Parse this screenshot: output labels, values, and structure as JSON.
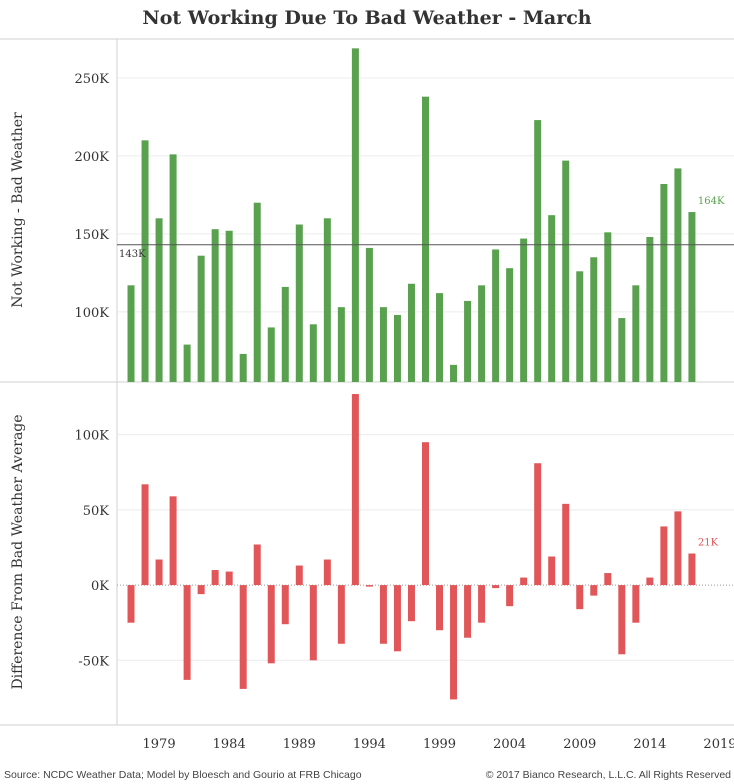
{
  "title": "Not Working Due To Bad Weather - March",
  "footer": {
    "source": "Source: NCDC Weather Data; Model by Bloesch and Gourio at FRB Chicago",
    "copyright": "© 2017 Bianco Research, L.L.C. All Rights Reserved"
  },
  "colors": {
    "top_bars": "#59a14f",
    "bottom_bars": "#e15759",
    "reference_line": "#555555"
  },
  "chart_data": [
    {
      "type": "bar",
      "ylabel": "Not Working - Bad Weather",
      "xlim": [
        1976,
        2020
      ],
      "ylim": [
        55000,
        275000
      ],
      "yticks": [
        100000,
        150000,
        200000,
        250000
      ],
      "ytick_labels": [
        "100K",
        "150K",
        "200K",
        "250K"
      ],
      "reference_line": {
        "value": 143000,
        "label": "143K"
      },
      "last_value_label": "164K",
      "x": [
        1977,
        1978,
        1979,
        1980,
        1981,
        1982,
        1983,
        1984,
        1985,
        1986,
        1987,
        1988,
        1989,
        1990,
        1991,
        1992,
        1993,
        1994,
        1995,
        1996,
        1997,
        1998,
        1999,
        2000,
        2001,
        2002,
        2003,
        2004,
        2005,
        2006,
        2007,
        2008,
        2009,
        2010,
        2011,
        2012,
        2013,
        2014,
        2015,
        2016,
        2017
      ],
      "values": [
        117000,
        210000,
        160000,
        201000,
        79000,
        136000,
        153000,
        152000,
        73000,
        170000,
        90000,
        116000,
        156000,
        92000,
        160000,
        103000,
        269000,
        141000,
        103000,
        98000,
        118000,
        238000,
        112000,
        66000,
        107000,
        117000,
        140000,
        128000,
        147000,
        223000,
        162000,
        197000,
        126000,
        135000,
        151000,
        96000,
        117000,
        148000,
        182000,
        192000,
        164000
      ]
    },
    {
      "type": "bar",
      "ylabel": "Difference From Bad Weather Average",
      "xlim": [
        1976,
        2020
      ],
      "ylim": [
        -93000,
        135000
      ],
      "yticks": [
        -50000,
        0,
        50000,
        100000
      ],
      "ytick_labels": [
        "-50K",
        "0K",
        "50K",
        "100K"
      ],
      "last_value_label": "21K",
      "x": [
        1977,
        1978,
        1979,
        1980,
        1981,
        1982,
        1983,
        1984,
        1985,
        1986,
        1987,
        1988,
        1989,
        1990,
        1991,
        1992,
        1993,
        1994,
        1995,
        1996,
        1997,
        1998,
        1999,
        2000,
        2001,
        2002,
        2003,
        2004,
        2005,
        2006,
        2007,
        2008,
        2009,
        2010,
        2011,
        2012,
        2013,
        2014,
        2015,
        2016,
        2017
      ],
      "values": [
        -25000,
        67000,
        17000,
        59000,
        -63000,
        -6000,
        10000,
        9000,
        -69000,
        27000,
        -52000,
        -26000,
        13000,
        -50000,
        17000,
        -39000,
        127000,
        -1000,
        -39000,
        -44000,
        -24000,
        95000,
        -30000,
        -76000,
        -35000,
        -25000,
        -2000,
        -14000,
        5000,
        81000,
        19000,
        54000,
        -16000,
        -7000,
        8000,
        -46000,
        -25000,
        5000,
        39000,
        49000,
        21000
      ]
    }
  ],
  "xtick_labels": [
    "1979",
    "1984",
    "1989",
    "1994",
    "1999",
    "2004",
    "2009",
    "2014",
    "2019"
  ],
  "xtick_values": [
    1979,
    1984,
    1989,
    1994,
    1999,
    2004,
    2009,
    2014,
    2019
  ]
}
